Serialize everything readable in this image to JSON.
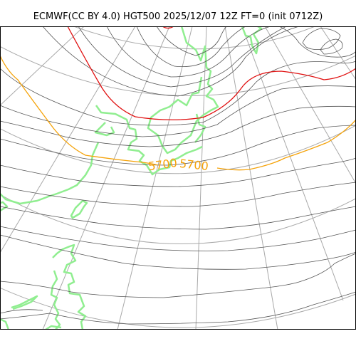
{
  "map": {
    "title": "ECMWF(CC BY 4.0) HGT500 2025/12/07 12Z FT=0 (init 0712Z)",
    "variable": "HGT500",
    "contour_labels": [
      {
        "text": "5700",
        "color": "#f5a30a"
      },
      {
        "text": "5700",
        "color": "#f5a30a"
      }
    ],
    "colors": {
      "coastline": "#90ee90",
      "graticule": "#a9a9a9",
      "contour": "#555555",
      "highlight_5400": "#e01010",
      "highlight_5700": "#f5a30a"
    }
  }
}
